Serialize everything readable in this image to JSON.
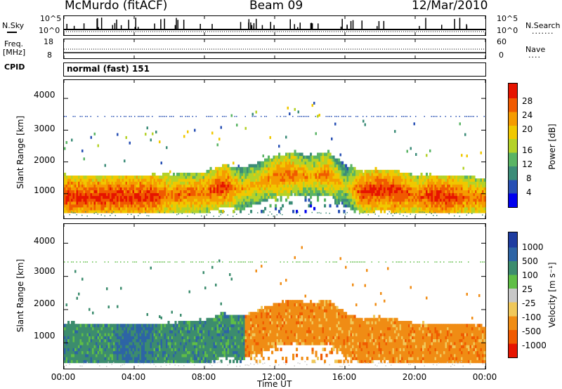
{
  "header": {
    "station": "McMurdo (fitACF)",
    "beam": "Beam 09",
    "date": "12/Mar/2010"
  },
  "panels": {
    "noise": {
      "left_label": "N.Sky",
      "left_ticks": [
        "10^5",
        "10^0"
      ],
      "right_label": "N.Search",
      "right_ticks": [
        "10^5",
        "10^0"
      ]
    },
    "freq": {
      "left_label_1": "Freq.",
      "left_label_2": "[MHz]",
      "left_ticks": [
        "18",
        "8"
      ],
      "right_label": "Nave",
      "right_ticks": [
        "60",
        "0"
      ]
    },
    "cpid": {
      "label": "CPID",
      "value": "normal (fast) 151"
    }
  },
  "chart_data": [
    {
      "type": "heatmap",
      "title": "",
      "quantity": "Power",
      "ylabel": "Slant Range [km]",
      "xlabel": "Time UT",
      "ylim": [
        200,
        4600
      ],
      "y_ticks": [
        "4000",
        "3000",
        "2000",
        "1000"
      ],
      "x_ticks": [
        "00:00",
        "04:00",
        "08:00",
        "12:00",
        "16:00",
        "20:00",
        "00:00"
      ],
      "colorbar": {
        "label": "Power [dB]",
        "tick_labels": [
          "28",
          "24",
          "20",
          "16",
          "12",
          "8",
          "4"
        ],
        "colors": [
          "#0000ee",
          "#2850b4",
          "#3c8c78",
          "#5ab464",
          "#b4d228",
          "#f0c800",
          "#f59b00",
          "#f05a00",
          "#e61400"
        ]
      },
      "intensity_profile": {
        "time_hours": [
          0,
          1,
          2,
          3,
          4,
          5,
          6,
          7,
          8,
          9,
          10,
          11,
          12,
          13,
          14,
          15,
          16,
          17,
          18,
          19,
          20,
          21,
          22,
          23,
          24
        ],
        "main_band_km": [
          900,
          850,
          850,
          900,
          850,
          900,
          900,
          950,
          1000,
          1200,
          1100,
          1300,
          1500,
          1600,
          1500,
          1600,
          1200,
          1000,
          1100,
          1000,
          900,
          900,
          850,
          850,
          800
        ],
        "peak_power_db": [
          28,
          28,
          28,
          28,
          28,
          28,
          24,
          24,
          24,
          28,
          20,
          20,
          24,
          24,
          20,
          24,
          16,
          28,
          28,
          28,
          24,
          28,
          28,
          24,
          24
        ]
      }
    },
    {
      "type": "heatmap",
      "title": "",
      "quantity": "Velocity",
      "ylabel": "Slant Range [km]",
      "xlabel": "Time UT",
      "ylim": [
        200,
        4600
      ],
      "y_ticks": [
        "4000",
        "3000",
        "2000",
        "1000"
      ],
      "x_ticks": [
        "00:00",
        "04:00",
        "08:00",
        "12:00",
        "16:00",
        "20:00",
        "00:00"
      ],
      "colorbar": {
        "label": "Velocity [m s⁻¹]",
        "tick_labels": [
          "1000",
          "500",
          "100",
          "25",
          "-25",
          "-100",
          "-500",
          "-1000"
        ],
        "colors": [
          "#1e3ca0",
          "#2d64a5",
          "#3c8c6e",
          "#5fbe46",
          "#c8c8c8",
          "#f0c85a",
          "#f08c14",
          "#f05a00",
          "#e61400"
        ]
      },
      "velocity_profile": {
        "time_hours": [
          0,
          2,
          4,
          6,
          8,
          10,
          11,
          12,
          14,
          16,
          18,
          20,
          22,
          24
        ],
        "dominant_velocity_ms": [
          100,
          100,
          500,
          100,
          100,
          100,
          -100,
          -100,
          -100,
          -100,
          -100,
          -100,
          -100,
          -100
        ]
      }
    }
  ]
}
